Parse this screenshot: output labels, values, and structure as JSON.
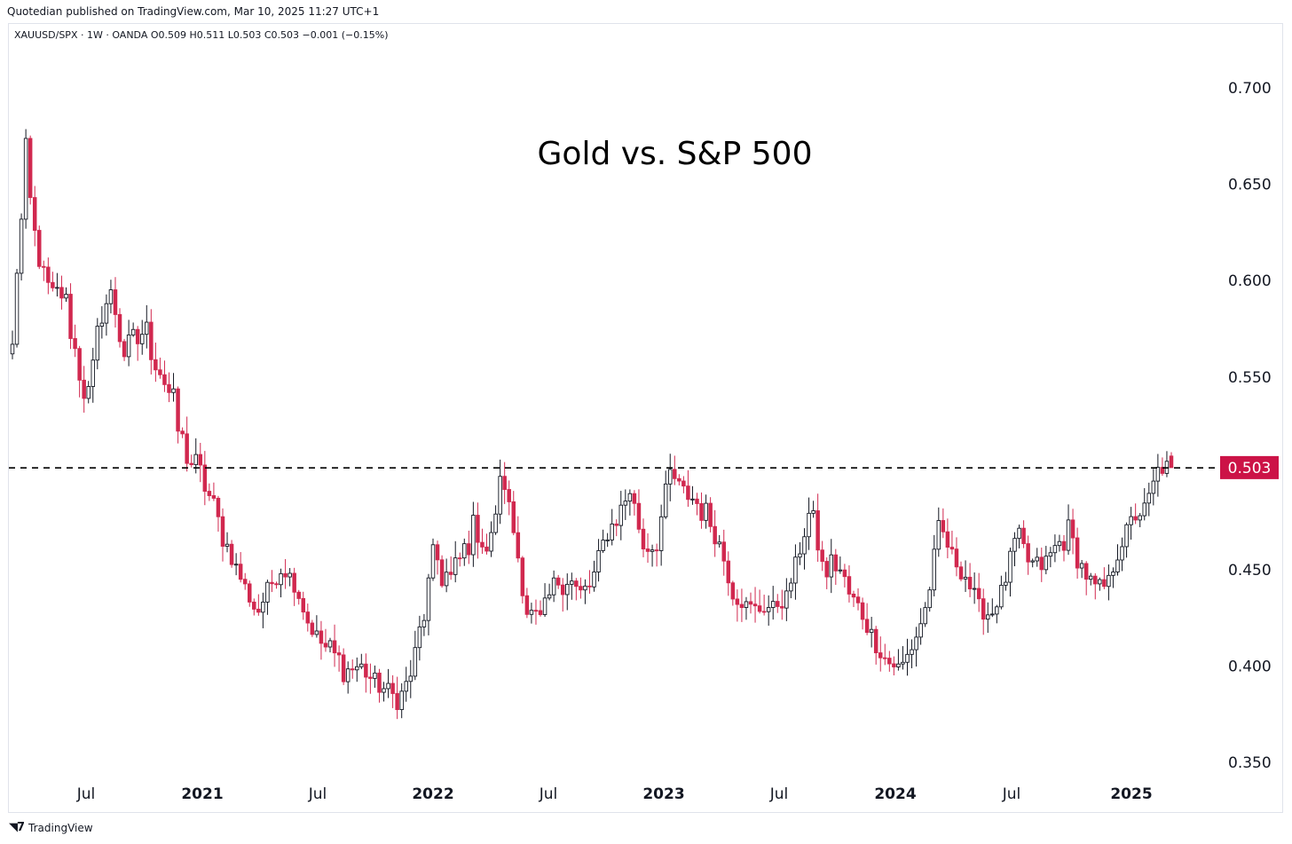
{
  "header": {
    "published_text": "Quotedian published on TradingView.com, Mar 10, 2025 11:27 UTC+1",
    "symbol_line": "XAUUSD/SPX · 1W · OANDA  O0.509  H0.511  L0.503  C0.503  −0.001 (−0.15%)"
  },
  "footer": {
    "brand": "TradingView",
    "logo_icon": "tradingview-logo-icon"
  },
  "colors": {
    "up": "#131722",
    "down": "#d1284f",
    "last_price_bg": "#cc1347",
    "dashed_line": "#000000"
  },
  "chart_data": {
    "type": "candlestick",
    "title": "Gold vs. S&P 500",
    "ylim": [
      0.34,
      0.72
    ],
    "y_ticks": [
      "0.700",
      "0.650",
      "0.600",
      "0.550",
      "0.450",
      "0.400",
      "0.350"
    ],
    "x_ticks": [
      "Jul",
      "2021",
      "Jul",
      "2022",
      "Jul",
      "2023",
      "Jul",
      "2024",
      "Jul",
      "2025"
    ],
    "x_ticks_bold": [
      false,
      true,
      false,
      true,
      false,
      true,
      false,
      true,
      false,
      true
    ],
    "last_price": {
      "value": 0.503,
      "label": "0.503"
    },
    "horizontal_line": {
      "value": 0.507,
      "style": "dashed"
    },
    "anchors": [
      [
        0.582,
        0.535
      ],
      [
        0.645,
        0.695
      ],
      [
        0.61,
        0.62
      ],
      [
        0.592,
        0.6
      ],
      [
        0.59,
        0.61
      ],
      [
        0.555,
        0.575
      ],
      [
        0.53,
        0.56
      ],
      [
        0.585,
        0.61
      ],
      [
        0.58,
        0.62
      ],
      [
        0.548,
        0.59
      ],
      [
        0.57,
        0.595
      ],
      [
        0.56,
        0.59
      ],
      [
        0.54,
        0.575
      ],
      [
        0.515,
        0.535
      ],
      [
        0.5,
        0.525
      ],
      [
        0.49,
        0.51
      ],
      [
        0.47,
        0.49
      ],
      [
        0.455,
        0.465
      ],
      [
        0.44,
        0.45
      ],
      [
        0.425,
        0.44
      ],
      [
        0.44,
        0.45
      ],
      [
        0.45,
        0.462
      ],
      [
        0.44,
        0.45
      ],
      [
        0.42,
        0.43
      ],
      [
        0.41,
        0.42
      ],
      [
        0.4,
        0.425
      ],
      [
        0.395,
        0.41
      ],
      [
        0.398,
        0.41
      ],
      [
        0.39,
        0.402
      ],
      [
        0.385,
        0.398
      ],
      [
        0.38,
        0.392
      ],
      [
        0.395,
        0.405
      ],
      [
        0.425,
        0.45
      ],
      [
        0.448,
        0.49
      ],
      [
        0.44,
        0.46
      ],
      [
        0.455,
        0.475
      ],
      [
        0.47,
        0.49
      ],
      [
        0.455,
        0.47
      ],
      [
        0.5,
        0.507
      ],
      [
        0.465,
        0.48
      ],
      [
        0.425,
        0.44
      ],
      [
        0.42,
        0.435
      ],
      [
        0.44,
        0.45
      ],
      [
        0.445,
        0.475
      ],
      [
        0.43,
        0.455
      ],
      [
        0.44,
        0.455
      ],
      [
        0.465,
        0.475
      ],
      [
        0.475,
        0.49
      ],
      [
        0.49,
        0.5
      ],
      [
        0.46,
        0.47
      ],
      [
        0.46,
        0.47
      ],
      [
        0.5,
        0.508
      ],
      [
        0.49,
        0.498
      ],
      [
        0.482,
        0.505
      ],
      [
        0.475,
        0.49
      ],
      [
        0.46,
        0.47
      ],
      [
        0.435,
        0.445
      ],
      [
        0.43,
        0.438
      ],
      [
        0.428,
        0.435
      ],
      [
        0.43,
        0.436
      ],
      [
        0.432,
        0.44
      ],
      [
        0.455,
        0.465
      ],
      [
        0.48,
        0.492
      ],
      [
        0.445,
        0.46
      ],
      [
        0.45,
        0.475
      ],
      [
        0.435,
        0.445
      ],
      [
        0.425,
        0.44
      ],
      [
        0.41,
        0.42
      ],
      [
        0.4,
        0.41
      ],
      [
        0.398,
        0.405
      ],
      [
        0.41,
        0.42
      ],
      [
        0.43,
        0.44
      ],
      [
        0.47,
        0.485
      ],
      [
        0.455,
        0.465
      ],
      [
        0.445,
        0.46
      ],
      [
        0.428,
        0.44
      ],
      [
        0.425,
        0.432
      ],
      [
        0.44,
        0.45
      ],
      [
        0.465,
        0.48
      ],
      [
        0.45,
        0.465
      ],
      [
        0.45,
        0.46
      ],
      [
        0.46,
        0.47
      ],
      [
        0.465,
        0.485
      ],
      [
        0.45,
        0.462
      ],
      [
        0.438,
        0.45
      ],
      [
        0.44,
        0.448
      ],
      [
        0.46,
        0.47
      ],
      [
        0.475,
        0.485
      ],
      [
        0.48,
        0.49
      ],
      [
        0.5,
        0.511
      ],
      [
        0.503,
        0.511
      ]
    ]
  }
}
